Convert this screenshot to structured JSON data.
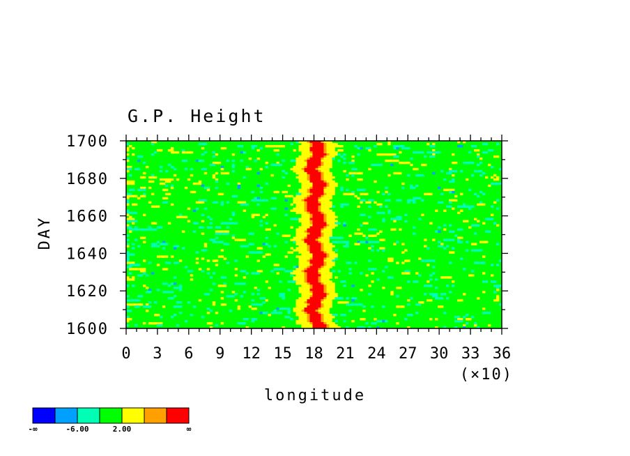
{
  "chart_data": {
    "type": "heatmap",
    "title": "G.P. Height",
    "xlabel": "longitude",
    "ylabel": "DAY",
    "x_multiplier_label": "(×10)",
    "xlim": [
      0,
      36
    ],
    "ylim": [
      1600,
      1700
    ],
    "x_ticks": [
      "0",
      "3",
      "6",
      "9",
      "12",
      "15",
      "18",
      "21",
      "24",
      "27",
      "30",
      "33",
      "36"
    ],
    "y_ticks": [
      "1600",
      "1620",
      "1640",
      "1660",
      "1680",
      "1700"
    ],
    "colorbar": {
      "colors": [
        "#0000ff",
        "#00a0ff",
        "#00ffb4",
        "#00ff00",
        "#ffff00",
        "#ffa000",
        "#ff0000"
      ],
      "labels": [
        "-∞",
        "-6.00",
        "2.00",
        "∞"
      ]
    },
    "features": {
      "core_center_longitude": 18,
      "core_color": "#ff0000",
      "core_edge_color": "#ffa000",
      "yellow_band_color": "#ffff00",
      "background_colors": [
        "#00ff00",
        "#00ffb4"
      ],
      "sparse_colors": [
        "#00a0ff",
        "#0000ff"
      ]
    }
  }
}
